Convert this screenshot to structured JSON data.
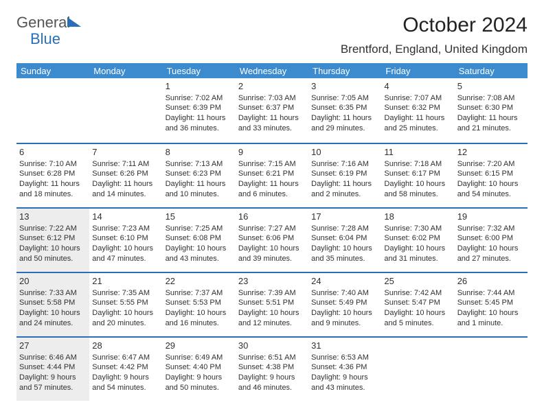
{
  "logo": {
    "line1": "General",
    "line2": "Blue"
  },
  "title": "October 2024",
  "location": "Brentford, England, United Kingdom",
  "colors": {
    "header_bg": "#3b8bce",
    "week_divider": "#2a6fb5",
    "shaded_cell": "#ededed",
    "text": "#303030"
  },
  "day_names": [
    "Sunday",
    "Monday",
    "Tuesday",
    "Wednesday",
    "Thursday",
    "Friday",
    "Saturday"
  ],
  "weeks": [
    [
      {
        "n": "",
        "sr": "",
        "ss": "",
        "dl": "",
        "shade": false,
        "empty": true
      },
      {
        "n": "",
        "sr": "",
        "ss": "",
        "dl": "",
        "shade": false,
        "empty": true
      },
      {
        "n": "1",
        "sr": "Sunrise: 7:02 AM",
        "ss": "Sunset: 6:39 PM",
        "dl": "Daylight: 11 hours and 36 minutes.",
        "shade": false
      },
      {
        "n": "2",
        "sr": "Sunrise: 7:03 AM",
        "ss": "Sunset: 6:37 PM",
        "dl": "Daylight: 11 hours and 33 minutes.",
        "shade": false
      },
      {
        "n": "3",
        "sr": "Sunrise: 7:05 AM",
        "ss": "Sunset: 6:35 PM",
        "dl": "Daylight: 11 hours and 29 minutes.",
        "shade": false
      },
      {
        "n": "4",
        "sr": "Sunrise: 7:07 AM",
        "ss": "Sunset: 6:32 PM",
        "dl": "Daylight: 11 hours and 25 minutes.",
        "shade": false
      },
      {
        "n": "5",
        "sr": "Sunrise: 7:08 AM",
        "ss": "Sunset: 6:30 PM",
        "dl": "Daylight: 11 hours and 21 minutes.",
        "shade": false
      }
    ],
    [
      {
        "n": "6",
        "sr": "Sunrise: 7:10 AM",
        "ss": "Sunset: 6:28 PM",
        "dl": "Daylight: 11 hours and 18 minutes.",
        "shade": false
      },
      {
        "n": "7",
        "sr": "Sunrise: 7:11 AM",
        "ss": "Sunset: 6:26 PM",
        "dl": "Daylight: 11 hours and 14 minutes.",
        "shade": false
      },
      {
        "n": "8",
        "sr": "Sunrise: 7:13 AM",
        "ss": "Sunset: 6:23 PM",
        "dl": "Daylight: 11 hours and 10 minutes.",
        "shade": false
      },
      {
        "n": "9",
        "sr": "Sunrise: 7:15 AM",
        "ss": "Sunset: 6:21 PM",
        "dl": "Daylight: 11 hours and 6 minutes.",
        "shade": false
      },
      {
        "n": "10",
        "sr": "Sunrise: 7:16 AM",
        "ss": "Sunset: 6:19 PM",
        "dl": "Daylight: 11 hours and 2 minutes.",
        "shade": false
      },
      {
        "n": "11",
        "sr": "Sunrise: 7:18 AM",
        "ss": "Sunset: 6:17 PM",
        "dl": "Daylight: 10 hours and 58 minutes.",
        "shade": false
      },
      {
        "n": "12",
        "sr": "Sunrise: 7:20 AM",
        "ss": "Sunset: 6:15 PM",
        "dl": "Daylight: 10 hours and 54 minutes.",
        "shade": false
      }
    ],
    [
      {
        "n": "13",
        "sr": "Sunrise: 7:22 AM",
        "ss": "Sunset: 6:12 PM",
        "dl": "Daylight: 10 hours and 50 minutes.",
        "shade": true
      },
      {
        "n": "14",
        "sr": "Sunrise: 7:23 AM",
        "ss": "Sunset: 6:10 PM",
        "dl": "Daylight: 10 hours and 47 minutes.",
        "shade": false
      },
      {
        "n": "15",
        "sr": "Sunrise: 7:25 AM",
        "ss": "Sunset: 6:08 PM",
        "dl": "Daylight: 10 hours and 43 minutes.",
        "shade": false
      },
      {
        "n": "16",
        "sr": "Sunrise: 7:27 AM",
        "ss": "Sunset: 6:06 PM",
        "dl": "Daylight: 10 hours and 39 minutes.",
        "shade": false
      },
      {
        "n": "17",
        "sr": "Sunrise: 7:28 AM",
        "ss": "Sunset: 6:04 PM",
        "dl": "Daylight: 10 hours and 35 minutes.",
        "shade": false
      },
      {
        "n": "18",
        "sr": "Sunrise: 7:30 AM",
        "ss": "Sunset: 6:02 PM",
        "dl": "Daylight: 10 hours and 31 minutes.",
        "shade": false
      },
      {
        "n": "19",
        "sr": "Sunrise: 7:32 AM",
        "ss": "Sunset: 6:00 PM",
        "dl": "Daylight: 10 hours and 27 minutes.",
        "shade": false
      }
    ],
    [
      {
        "n": "20",
        "sr": "Sunrise: 7:33 AM",
        "ss": "Sunset: 5:58 PM",
        "dl": "Daylight: 10 hours and 24 minutes.",
        "shade": true
      },
      {
        "n": "21",
        "sr": "Sunrise: 7:35 AM",
        "ss": "Sunset: 5:55 PM",
        "dl": "Daylight: 10 hours and 20 minutes.",
        "shade": false
      },
      {
        "n": "22",
        "sr": "Sunrise: 7:37 AM",
        "ss": "Sunset: 5:53 PM",
        "dl": "Daylight: 10 hours and 16 minutes.",
        "shade": false
      },
      {
        "n": "23",
        "sr": "Sunrise: 7:39 AM",
        "ss": "Sunset: 5:51 PM",
        "dl": "Daylight: 10 hours and 12 minutes.",
        "shade": false
      },
      {
        "n": "24",
        "sr": "Sunrise: 7:40 AM",
        "ss": "Sunset: 5:49 PM",
        "dl": "Daylight: 10 hours and 9 minutes.",
        "shade": false
      },
      {
        "n": "25",
        "sr": "Sunrise: 7:42 AM",
        "ss": "Sunset: 5:47 PM",
        "dl": "Daylight: 10 hours and 5 minutes.",
        "shade": false
      },
      {
        "n": "26",
        "sr": "Sunrise: 7:44 AM",
        "ss": "Sunset: 5:45 PM",
        "dl": "Daylight: 10 hours and 1 minute.",
        "shade": false
      }
    ],
    [
      {
        "n": "27",
        "sr": "Sunrise: 6:46 AM",
        "ss": "Sunset: 4:44 PM",
        "dl": "Daylight: 9 hours and 57 minutes.",
        "shade": true
      },
      {
        "n": "28",
        "sr": "Sunrise: 6:47 AM",
        "ss": "Sunset: 4:42 PM",
        "dl": "Daylight: 9 hours and 54 minutes.",
        "shade": false
      },
      {
        "n": "29",
        "sr": "Sunrise: 6:49 AM",
        "ss": "Sunset: 4:40 PM",
        "dl": "Daylight: 9 hours and 50 minutes.",
        "shade": false
      },
      {
        "n": "30",
        "sr": "Sunrise: 6:51 AM",
        "ss": "Sunset: 4:38 PM",
        "dl": "Daylight: 9 hours and 46 minutes.",
        "shade": false
      },
      {
        "n": "31",
        "sr": "Sunrise: 6:53 AM",
        "ss": "Sunset: 4:36 PM",
        "dl": "Daylight: 9 hours and 43 minutes.",
        "shade": false
      },
      {
        "n": "",
        "sr": "",
        "ss": "",
        "dl": "",
        "shade": false,
        "empty": true
      },
      {
        "n": "",
        "sr": "",
        "ss": "",
        "dl": "",
        "shade": false,
        "empty": true
      }
    ]
  ]
}
